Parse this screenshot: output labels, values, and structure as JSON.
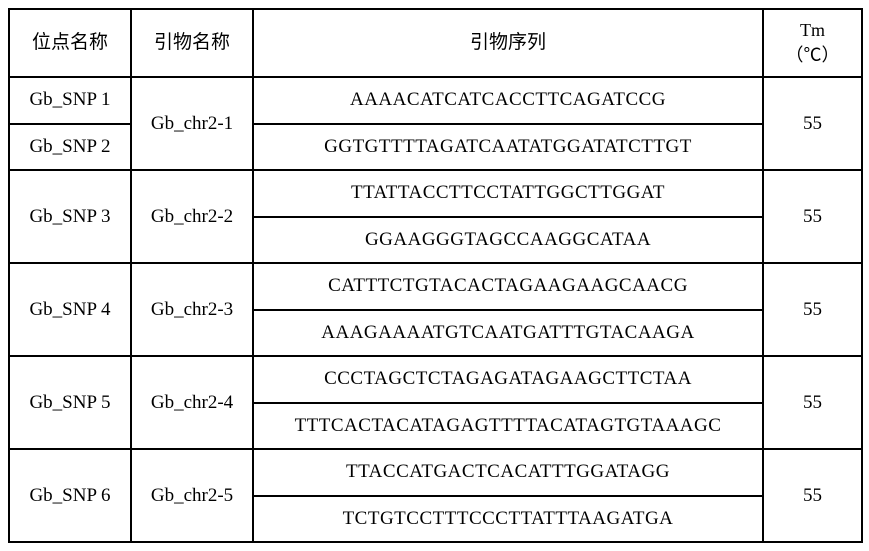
{
  "headers": {
    "locus": "位点名称",
    "primer": "引物名称",
    "sequence": "引物序列",
    "tm": "Tm",
    "tm_unit": "（℃）"
  },
  "rows": [
    {
      "locus": "Gb_SNP 1",
      "primer": "Gb_chr2-1",
      "seq": "AAAACATCATCACCTTCAGATCCG",
      "tm": "55"
    },
    {
      "locus": "Gb_SNP 2",
      "primer": "",
      "seq": "GGTGTTTTAGATCAATATGGATATCTTGT",
      "tm": ""
    },
    {
      "locus": "Gb_SNP 3",
      "primer": "Gb_chr2-2",
      "seq": "TTATTACCTTCCTATTGGCTTGGAT",
      "tm": "55"
    },
    {
      "locus": "",
      "primer": "",
      "seq": "GGAAGGGTAGCCAAGGCATAA",
      "tm": ""
    },
    {
      "locus": "Gb_SNP 4",
      "primer": "Gb_chr2-3",
      "seq": "CATTTCTGTACACTAGAAGAAGCAACG",
      "tm": "55"
    },
    {
      "locus": "",
      "primer": "",
      "seq": "AAAGAAAATGTCAATGATTTGTACAAGA",
      "tm": ""
    },
    {
      "locus": "Gb_SNP 5",
      "primer": "Gb_chr2-4",
      "seq": "CCCTAGCTCTAGAGATAGAAGCTTCTAA",
      "tm": "55"
    },
    {
      "locus": "",
      "primer": "",
      "seq": "TTTCACTACATAGAGTTTTACATAGTGTAAAGC",
      "tm": ""
    },
    {
      "locus": "Gb_SNP 6",
      "primer": "Gb_chr2-5",
      "seq": "TTACCATGACTCACATTTGGATAGG",
      "tm": "55"
    },
    {
      "locus": "",
      "primer": "",
      "seq": "TCTGTCCTTTCCCTTATTTAAGATGA",
      "tm": ""
    }
  ]
}
